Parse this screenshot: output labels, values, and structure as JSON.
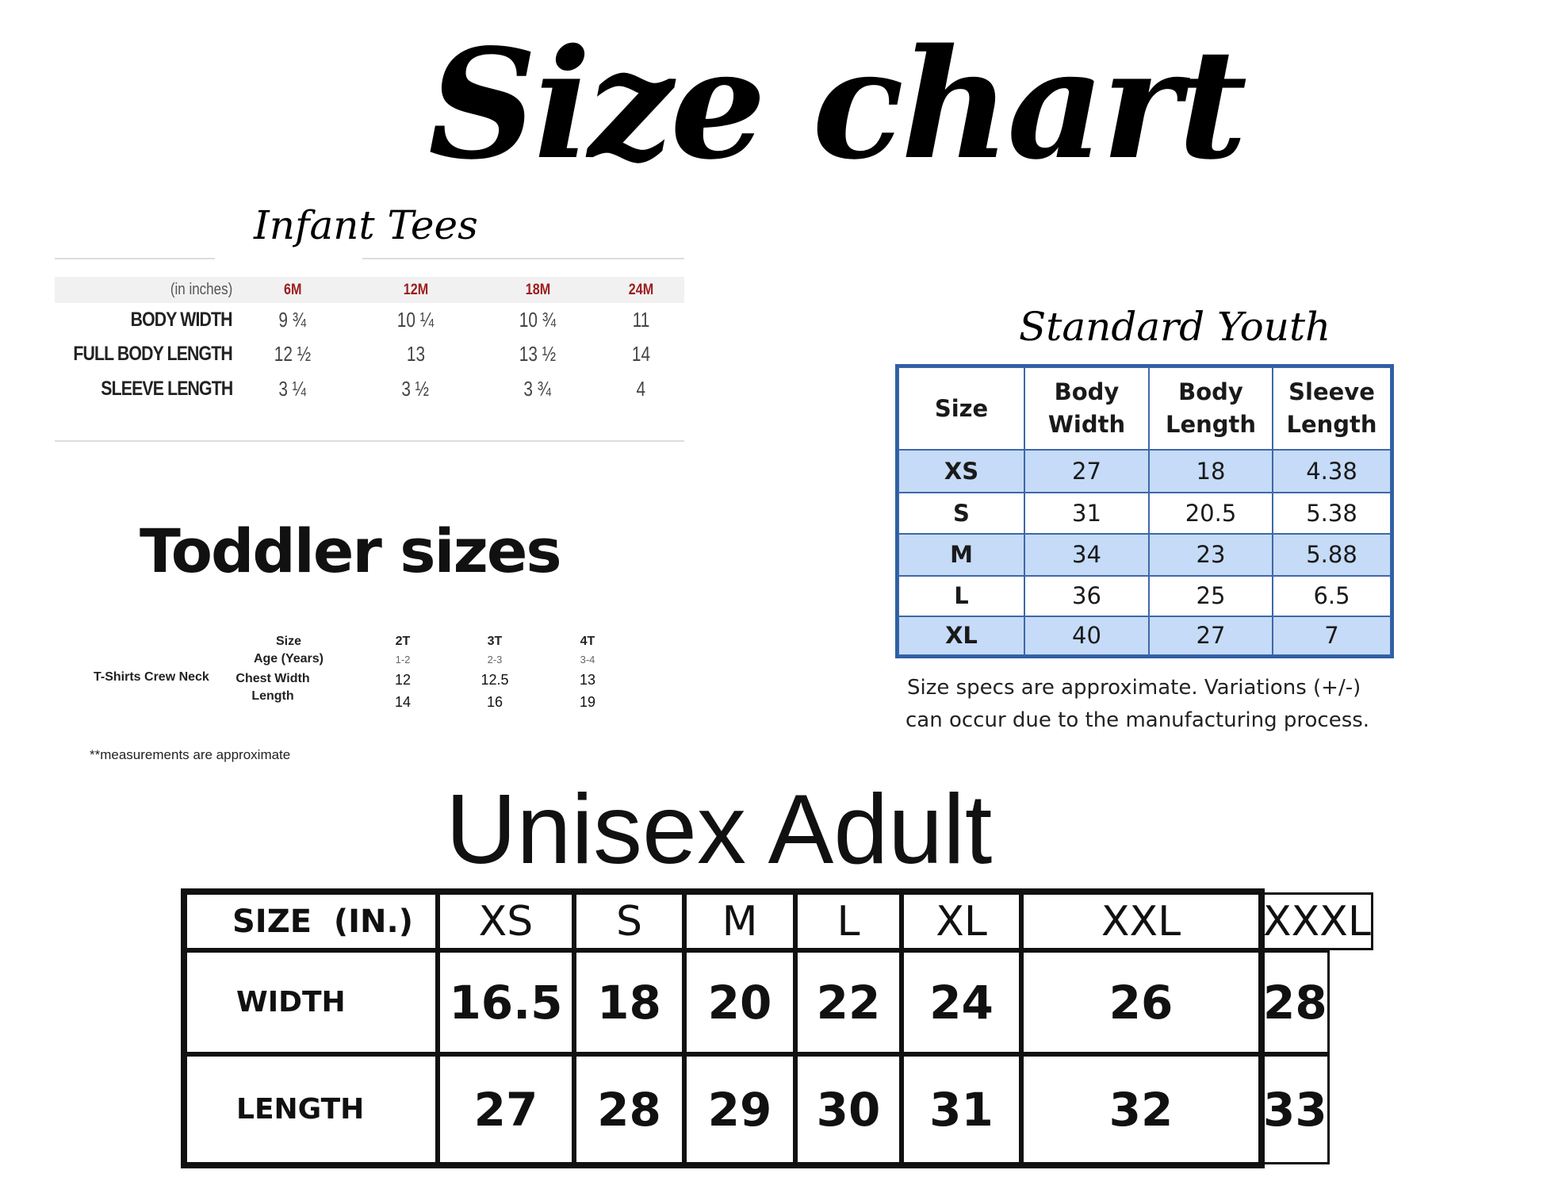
{
  "title": "Size chart",
  "infant": {
    "heading": "Infant Tees",
    "unit_label": "(in inches)",
    "sizes": [
      "6M",
      "12M",
      "18M",
      "24M"
    ],
    "rows": [
      {
        "label": "BODY WIDTH",
        "values": [
          "9 ¾",
          "10 ¼",
          "10 ¾",
          "11"
        ]
      },
      {
        "label": "FULL BODY LENGTH",
        "values": [
          "12 ½",
          "13",
          "13 ½",
          "14"
        ]
      },
      {
        "label": "SLEEVE LENGTH",
        "values": [
          "3 ¼",
          "3 ½",
          "3 ¾",
          "4"
        ]
      }
    ],
    "header_color": "#9b1c1c"
  },
  "toddler": {
    "heading": "Toddler sizes",
    "product": "T-Shirts  Crew Neck",
    "row_labels": [
      "Size",
      "Age (Years)",
      "Chest Width",
      "Length"
    ],
    "sizes": [
      "2T",
      "3T",
      "4T"
    ],
    "ages": [
      "1-2",
      "2-3",
      "3-4"
    ],
    "chest_width": [
      "12",
      "12.5",
      "13"
    ],
    "length": [
      "14",
      "16",
      "19"
    ],
    "note": "**measurements are approximate"
  },
  "youth": {
    "heading": "Standard Youth",
    "columns": [
      "Size",
      "Body Width",
      "Body Length",
      "Sleeve Length"
    ],
    "rows": [
      [
        "XS",
        "27",
        "18",
        "4.38"
      ],
      [
        "S",
        "31",
        "20.5",
        "5.38"
      ],
      [
        "M",
        "34",
        "23",
        "5.88"
      ],
      [
        "L",
        "36",
        "25",
        "6.5"
      ],
      [
        "XL",
        "40",
        "27",
        "7"
      ]
    ],
    "note_line1": "Size specs are approximate. Variations (+/-)",
    "note_line2": "can occur due to the manufacturing process.",
    "border_color": "#3f68a8",
    "band_color": "#c5dbf7"
  },
  "adult": {
    "heading": "Unisex Adult",
    "corner_label": "SIZE  (IN.)",
    "sizes": [
      "XS",
      "S",
      "M",
      "L",
      "XL",
      "XXL",
      "XXXL"
    ],
    "rows": [
      {
        "label": "WIDTH",
        "values": [
          "16.5",
          "18",
          "20",
          "22",
          "24",
          "26",
          "28"
        ]
      },
      {
        "label": "LENGTH",
        "values": [
          "27",
          "28",
          "29",
          "30",
          "31",
          "32",
          "33"
        ]
      }
    ]
  }
}
